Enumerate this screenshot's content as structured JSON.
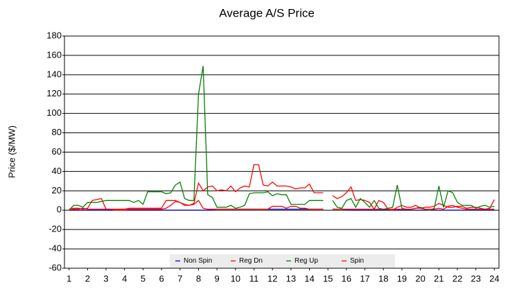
{
  "chart_data": {
    "type": "line",
    "title": "Average A/S Price",
    "y_label": "Price ($/MW)",
    "x": [
      1,
      1.25,
      1.5,
      1.75,
      2,
      2.25,
      2.5,
      2.75,
      3,
      3.25,
      3.5,
      3.75,
      4,
      4.25,
      4.5,
      4.75,
      5,
      5.25,
      5.5,
      5.75,
      6,
      6.25,
      6.5,
      6.75,
      7,
      7.25,
      7.5,
      7.75,
      8,
      8.25,
      8.5,
      8.75,
      9,
      9.25,
      9.5,
      9.75,
      10,
      10.25,
      10.5,
      10.75,
      11,
      11.25,
      11.5,
      11.75,
      12,
      12.25,
      12.5,
      12.75,
      13,
      13.25,
      13.5,
      13.75,
      14,
      14.25,
      14.5,
      14.75,
      15,
      15.25,
      15.5,
      15.75,
      16,
      16.25,
      16.5,
      16.75,
      17,
      17.25,
      17.5,
      17.75,
      18,
      18.25,
      18.5,
      18.75,
      19,
      19.25,
      19.5,
      19.75,
      20,
      20.25,
      20.5,
      20.75,
      21,
      21.25,
      21.5,
      21.75,
      22,
      22.25,
      22.5,
      22.75,
      23,
      23.25,
      23.5,
      23.75,
      24
    ],
    "series": [
      {
        "name": "Non Spin",
        "color": "#0000cc",
        "values": [
          0,
          0,
          0,
          0,
          0,
          0,
          0,
          0,
          0,
          0,
          0,
          0,
          0,
          0,
          0,
          0,
          0,
          0,
          0,
          0,
          0,
          0,
          0,
          0,
          0,
          0,
          0,
          0,
          0,
          0,
          0,
          0,
          1,
          1,
          1,
          1,
          1,
          1,
          1,
          1,
          1,
          1,
          1,
          1,
          1,
          1,
          1,
          1,
          1,
          1,
          1,
          1,
          1,
          1,
          1,
          1,
          null,
          1,
          1,
          1,
          0,
          0,
          0,
          0,
          0,
          0,
          0,
          0,
          0,
          0,
          0,
          0,
          0,
          0,
          0,
          0,
          0,
          0,
          0,
          0,
          0,
          0,
          0,
          0,
          0,
          0,
          0,
          0,
          0,
          0,
          0,
          0,
          0
        ]
      },
      {
        "name": "Reg Dn",
        "color": "#ff0000",
        "values": [
          1,
          2,
          2,
          1,
          2,
          10,
          11,
          12,
          1,
          1,
          1,
          1,
          1,
          2,
          2,
          2,
          2,
          2,
          2,
          2,
          2,
          10,
          10,
          10,
          8,
          5,
          5,
          7,
          28,
          20,
          24,
          25,
          20,
          21,
          20,
          25,
          19,
          23,
          25,
          24,
          47,
          47,
          26,
          25,
          29,
          25,
          25,
          25,
          24,
          22,
          23,
          23,
          27,
          18,
          18,
          18,
          null,
          15,
          12,
          14,
          18,
          24,
          10,
          11,
          10,
          8,
          1,
          10,
          8,
          1,
          0,
          3,
          5,
          3,
          3,
          5,
          2,
          3,
          3,
          4,
          7,
          5,
          3,
          3,
          4,
          4,
          2,
          3,
          3,
          2,
          1,
          2,
          11
        ]
      },
      {
        "name": "Reg Up",
        "color": "#008000",
        "values": [
          0,
          5,
          5,
          3,
          8,
          8,
          8,
          9,
          10,
          10,
          10,
          10,
          10,
          10,
          8,
          10,
          6,
          19,
          19,
          19,
          19,
          17,
          18,
          26,
          29,
          12,
          10,
          10,
          120,
          149,
          16,
          13,
          3,
          3,
          3,
          5,
          2,
          3,
          5,
          17,
          18,
          18,
          18,
          19,
          15,
          17,
          16,
          16,
          6,
          6,
          6,
          6,
          10,
          10,
          10,
          10,
          null,
          10,
          3,
          2,
          10,
          12,
          3,
          12,
          8,
          3,
          10,
          2,
          1,
          2,
          3,
          26,
          2,
          1,
          1,
          2,
          3,
          1,
          0,
          2,
          25,
          3,
          20,
          18,
          8,
          5,
          5,
          5,
          2,
          4,
          5,
          3,
          4
        ]
      },
      {
        "name": "Spin",
        "color": "#ff0000",
        "values": [
          0,
          1,
          1,
          2,
          1,
          1,
          1,
          1,
          1,
          1,
          0,
          0,
          0,
          1,
          1,
          1,
          1,
          1,
          1,
          1,
          1,
          2,
          5,
          9,
          8,
          6,
          5,
          6,
          10,
          2,
          1,
          1,
          1,
          1,
          1,
          1,
          1,
          1,
          1,
          1,
          1,
          1,
          1,
          1,
          4,
          4,
          4,
          2,
          4,
          4,
          2,
          2,
          1,
          1,
          1,
          1,
          null,
          1,
          1,
          1,
          1,
          1,
          1,
          1,
          1,
          1,
          1,
          1,
          1,
          1,
          1,
          1,
          1,
          1,
          1,
          2,
          2,
          1,
          1,
          1,
          2,
          1,
          4,
          5,
          3,
          2,
          1,
          1,
          1,
          1,
          1,
          1,
          1
        ]
      }
    ],
    "xlim": [
      0.75,
      24.25
    ],
    "xticks": [
      1,
      2,
      3,
      4,
      5,
      6,
      7,
      8,
      9,
      10,
      11,
      12,
      13,
      14,
      15,
      16,
      17,
      18,
      19,
      20,
      21,
      22,
      23,
      24
    ],
    "ylim": [
      -60,
      180
    ],
    "yticks": [
      -60,
      -40,
      -20,
      0,
      20,
      40,
      60,
      80,
      100,
      120,
      140,
      160,
      180
    ],
    "grid": true,
    "legend": "lower center"
  }
}
